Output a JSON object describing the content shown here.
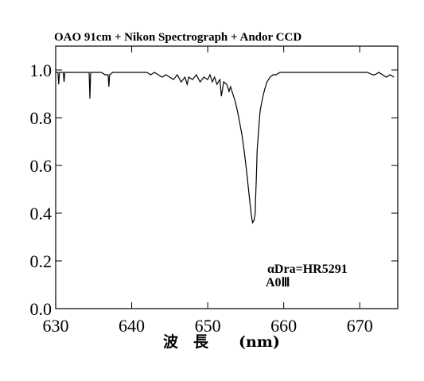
{
  "chart_data": {
    "type": "line",
    "title": "OAO 91cm + Nikon Spectrograph + Andor CCD",
    "xlabel": "波　長　　(nm)",
    "ylabel": "",
    "xlim": [
      630,
      675
    ],
    "ylim": [
      0.0,
      1.1
    ],
    "x_ticks": [
      630,
      640,
      650,
      660,
      670
    ],
    "x_tick_labels": [
      "630",
      "640",
      "650",
      "660",
      "670"
    ],
    "y_ticks": [
      0.0,
      0.2,
      0.4,
      0.6,
      0.8,
      1.0
    ],
    "y_tick_labels": [
      "0.0",
      "0.2",
      "0.4",
      "0.6",
      "0.8",
      "1.0"
    ],
    "grid": false,
    "annotations": [
      "αDra=HR5291",
      "A0Ⅲ"
    ],
    "series": [
      {
        "x": [
          630.0,
          630.3,
          630.4,
          630.5,
          630.7,
          631.0,
          631.1,
          631.2,
          631.5,
          632.0,
          632.5,
          633.0,
          633.5,
          634.0,
          634.4,
          634.5,
          634.6,
          635.0,
          635.5,
          636.0,
          636.5,
          636.9,
          637.0,
          637.1,
          637.5,
          638.0,
          638.5,
          639.0,
          639.5,
          640.0,
          640.5,
          641.0,
          641.5,
          642.0,
          642.5,
          643.0,
          643.5,
          644.0,
          644.5,
          645.0,
          645.5,
          646.0,
          646.5,
          647.0,
          647.3,
          647.5,
          648.0,
          648.5,
          649.0,
          649.5,
          650.0,
          650.3,
          650.6,
          650.9,
          651.2,
          651.6,
          651.8,
          652.1,
          652.5,
          652.8,
          653.0,
          653.3,
          653.6,
          653.9,
          654.2,
          654.5,
          654.8,
          655.1,
          655.4,
          655.7,
          655.9,
          656.1,
          656.25,
          656.3,
          656.4,
          656.5,
          656.7,
          656.9,
          657.2,
          657.5,
          657.8,
          658.2,
          658.6,
          659.0,
          659.5,
          660.0,
          661.0,
          662.0,
          663.0,
          664.0,
          665.0,
          666.0,
          667.0,
          668.0,
          669.0,
          670.0,
          671.0,
          671.7,
          672.0,
          672.5,
          673.0,
          673.5,
          674.0,
          674.5
        ],
        "y": [
          0.99,
          0.99,
          0.94,
          0.99,
          0.99,
          0.99,
          0.95,
          0.99,
          0.99,
          0.99,
          0.99,
          0.99,
          0.99,
          0.99,
          0.99,
          0.88,
          0.99,
          0.99,
          0.99,
          0.99,
          0.98,
          0.98,
          0.93,
          0.98,
          0.99,
          0.99,
          0.99,
          0.99,
          0.99,
          0.99,
          0.99,
          0.99,
          0.99,
          0.99,
          0.98,
          0.99,
          0.98,
          0.97,
          0.98,
          0.97,
          0.96,
          0.98,
          0.95,
          0.97,
          0.94,
          0.97,
          0.96,
          0.98,
          0.95,
          0.97,
          0.96,
          0.98,
          0.95,
          0.97,
          0.94,
          0.96,
          0.89,
          0.95,
          0.94,
          0.91,
          0.93,
          0.9,
          0.87,
          0.83,
          0.78,
          0.73,
          0.66,
          0.58,
          0.49,
          0.4,
          0.36,
          0.37,
          0.4,
          0.46,
          0.55,
          0.66,
          0.75,
          0.83,
          0.88,
          0.92,
          0.95,
          0.97,
          0.98,
          0.98,
          0.99,
          0.99,
          0.99,
          0.99,
          0.99,
          0.99,
          0.99,
          0.99,
          0.99,
          0.99,
          0.99,
          0.99,
          0.99,
          0.98,
          0.98,
          0.99,
          0.98,
          0.97,
          0.98,
          0.97
        ]
      }
    ]
  }
}
